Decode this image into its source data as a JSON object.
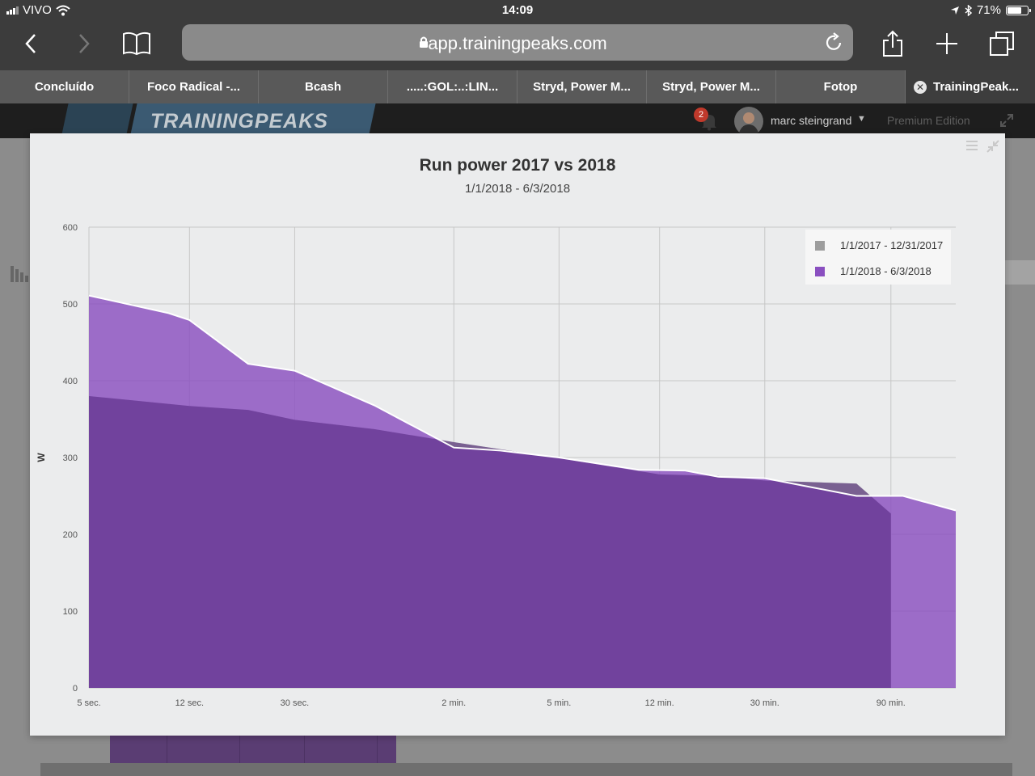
{
  "status_bar": {
    "carrier": "VIVO",
    "time": "14:09",
    "battery": "71%",
    "battery_level": 0.71
  },
  "browser": {
    "url": "app.trainingpeaks.com",
    "tabs": [
      {
        "label": "Concluído",
        "active": false
      },
      {
        "label": "Foco Radical -...",
        "active": false
      },
      {
        "label": "Bcash",
        "active": false
      },
      {
        "label": ".....:GOL:..:LIN...",
        "active": false
      },
      {
        "label": "Stryd, Power M...",
        "active": false
      },
      {
        "label": "Stryd, Power M...",
        "active": false
      },
      {
        "label": "Fotop",
        "active": false
      },
      {
        "label": "TrainingPeak...",
        "active": true
      }
    ]
  },
  "app_header": {
    "logo": "TRAININGPEAKS",
    "notification_count": "2",
    "username": "marc steingrand",
    "edition": "Premium Edition"
  },
  "chart_data": {
    "type": "area",
    "title": "Run power 2017 vs 2018",
    "subtitle": "1/1/2018 - 6/3/2018",
    "xlabel": "",
    "ylabel": "W",
    "x_scale": "log",
    "x_tick_labels": [
      {
        "label": "5 sec.",
        "seconds": 5
      },
      {
        "label": "12 sec.",
        "seconds": 12
      },
      {
        "label": "30 sec.",
        "seconds": 30
      },
      {
        "label": "2 min.",
        "seconds": 120
      },
      {
        "label": "5 min.",
        "seconds": 300
      },
      {
        "label": "12 min.",
        "seconds": 720
      },
      {
        "label": "30 min.",
        "seconds": 1800
      },
      {
        "label": "90 min.",
        "seconds": 5400
      }
    ],
    "y_ticks": [
      0,
      100,
      200,
      300,
      400,
      500,
      600
    ],
    "ylim": [
      0,
      600
    ],
    "grid": true,
    "legend_position": "top-right",
    "series": [
      {
        "name": "1/1/2017 - 12/31/2017",
        "color": "#9d9d9d",
        "points": [
          [
            5,
            380
          ],
          [
            12,
            367
          ],
          [
            20,
            362
          ],
          [
            30,
            349
          ],
          [
            60,
            337
          ],
          [
            120,
            320
          ],
          [
            300,
            299
          ],
          [
            720,
            278
          ],
          [
            1200,
            276
          ],
          [
            1800,
            270
          ],
          [
            4000,
            266
          ],
          [
            5400,
            227
          ]
        ]
      },
      {
        "name": "1/1/2018 - 6/3/2018",
        "color": "#8a4fc0",
        "points": [
          [
            5,
            511
          ],
          [
            10,
            488
          ],
          [
            12,
            479
          ],
          [
            20,
            422
          ],
          [
            30,
            413
          ],
          [
            60,
            368
          ],
          [
            120,
            313
          ],
          [
            180,
            309
          ],
          [
            300,
            300
          ],
          [
            600,
            284
          ],
          [
            900,
            283
          ],
          [
            1200,
            275
          ],
          [
            1800,
            273
          ],
          [
            4000,
            250
          ],
          [
            6000,
            250
          ],
          [
            9500,
            231
          ]
        ]
      }
    ]
  }
}
